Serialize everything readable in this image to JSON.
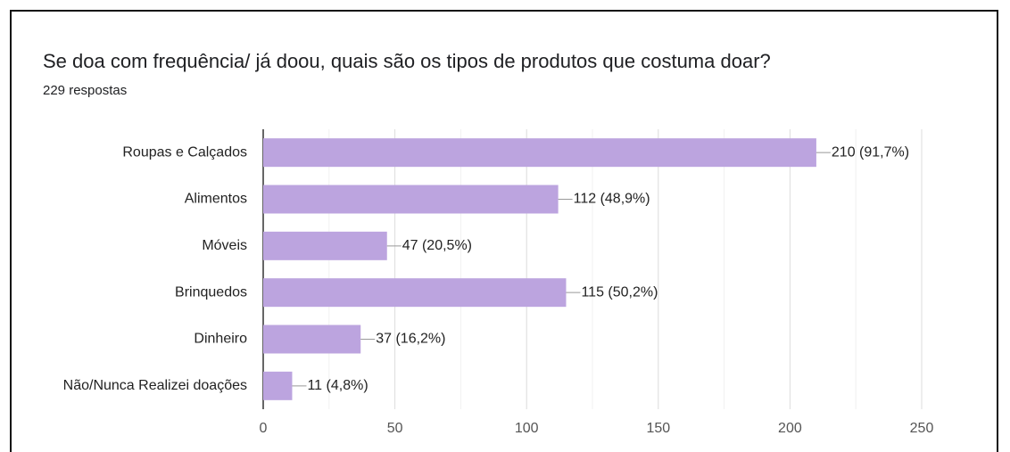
{
  "chart_data": {
    "type": "barh",
    "title": "Se doa com frequência/ já doou, quais são os tipos de produtos que costuma doar?",
    "subtitle": "229 respostas",
    "categories": [
      "Roupas e Calçados",
      "Alimentos",
      "Móveis",
      "Brinquedos",
      "Dinheiro",
      "Não/Nunca Realizei doações"
    ],
    "values": [
      210,
      112,
      47,
      115,
      37,
      11
    ],
    "value_labels": [
      "210 (91,7%)",
      "112 (48,9%)",
      "47 (20,5%)",
      "115 (50,2%)",
      "37 (16,2%)",
      "11 (4,8%)"
    ],
    "color": "#bca4df",
    "xlim": [
      0,
      250
    ],
    "xticks": [
      0,
      50,
      100,
      150,
      200,
      250
    ],
    "minor_xticks": [
      25,
      75,
      125,
      175,
      225
    ],
    "grid": true
  }
}
